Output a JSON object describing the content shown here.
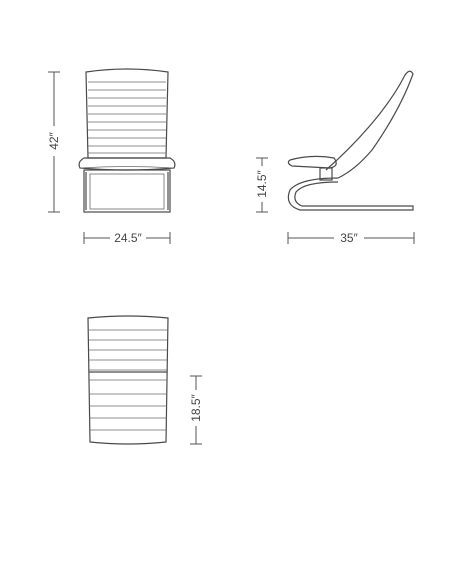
{
  "dimensions": {
    "height": "42″",
    "width": "24.5″",
    "seat_height": "14.5″",
    "depth": "35″",
    "seat_depth": "18.5″"
  },
  "colors": {
    "line": "#4a4a4a",
    "background": "#ffffff"
  }
}
